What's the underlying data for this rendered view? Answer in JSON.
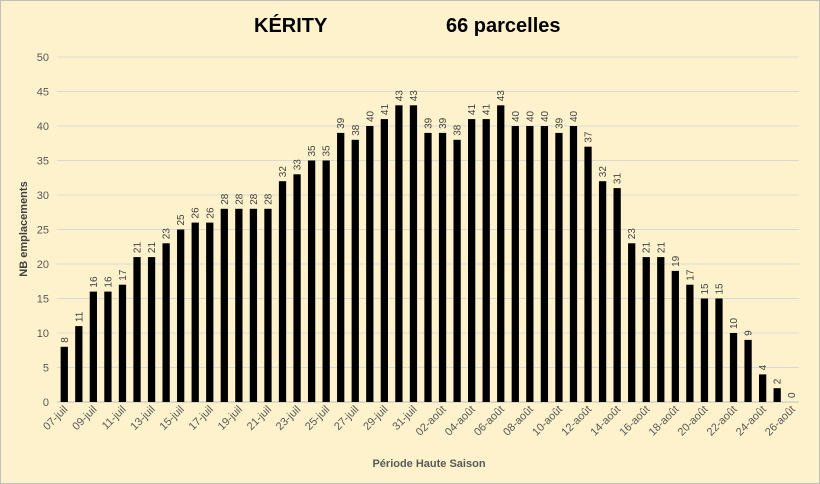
{
  "chart_data": {
    "type": "bar",
    "title": "KÉRITY",
    "subtitle": "66 parcelles",
    "xlabel": "Période Haute Saison",
    "ylabel": "NB emplacements",
    "ylim": [
      0,
      50
    ],
    "yticks": [
      0,
      5,
      10,
      15,
      20,
      25,
      30,
      35,
      40,
      45,
      50
    ],
    "grid": true,
    "bar_color": "#000000",
    "gridline_color": "#d9d9d9",
    "background_color": "#fef2cc",
    "categories": [
      "07-juil",
      "08-juil",
      "09-juil",
      "10-juil",
      "11-juil",
      "12-juil",
      "13-juil",
      "14-juil",
      "15-juil",
      "16-juil",
      "17-juil",
      "18-juil",
      "19-juil",
      "20-juil",
      "21-juil",
      "22-juil",
      "23-juil",
      "24-juil",
      "25-juil",
      "26-juil",
      "27-juil",
      "28-juil",
      "29-juil",
      "30-juil",
      "31-juil",
      "01-août",
      "02-août",
      "03-août",
      "04-août",
      "05-août",
      "06-août",
      "07-août",
      "08-août",
      "09-août",
      "10-août",
      "11-août",
      "12-août",
      "13-août",
      "14-août",
      "15-août",
      "16-août",
      "17-août",
      "18-août",
      "19-août",
      "20-août",
      "21-août",
      "22-août",
      "23-août",
      "24-août",
      "25-août",
      "26-août"
    ],
    "tick_labels": [
      "07-juil",
      "09-juil",
      "11-juil",
      "13-juil",
      "15-juil",
      "17-juil",
      "19-juil",
      "21-juil",
      "23-juil",
      "25-juil",
      "27-juil",
      "29-juil",
      "31-juil",
      "02-août",
      "04-août",
      "06-août",
      "08-août",
      "10-août",
      "12-août",
      "14-août",
      "16-août",
      "18-août",
      "20-août",
      "22-août",
      "24-août",
      "26-août"
    ],
    "values": [
      8,
      11,
      16,
      16,
      17,
      21,
      21,
      23,
      25,
      26,
      26,
      28,
      28,
      28,
      28,
      32,
      33,
      35,
      35,
      39,
      38,
      40,
      41,
      43,
      43,
      39,
      39,
      38,
      41,
      41,
      43,
      40,
      40,
      40,
      39,
      40,
      37,
      32,
      31,
      23,
      21,
      21,
      19,
      17,
      15,
      15,
      10,
      9,
      4,
      2,
      0
    ]
  }
}
